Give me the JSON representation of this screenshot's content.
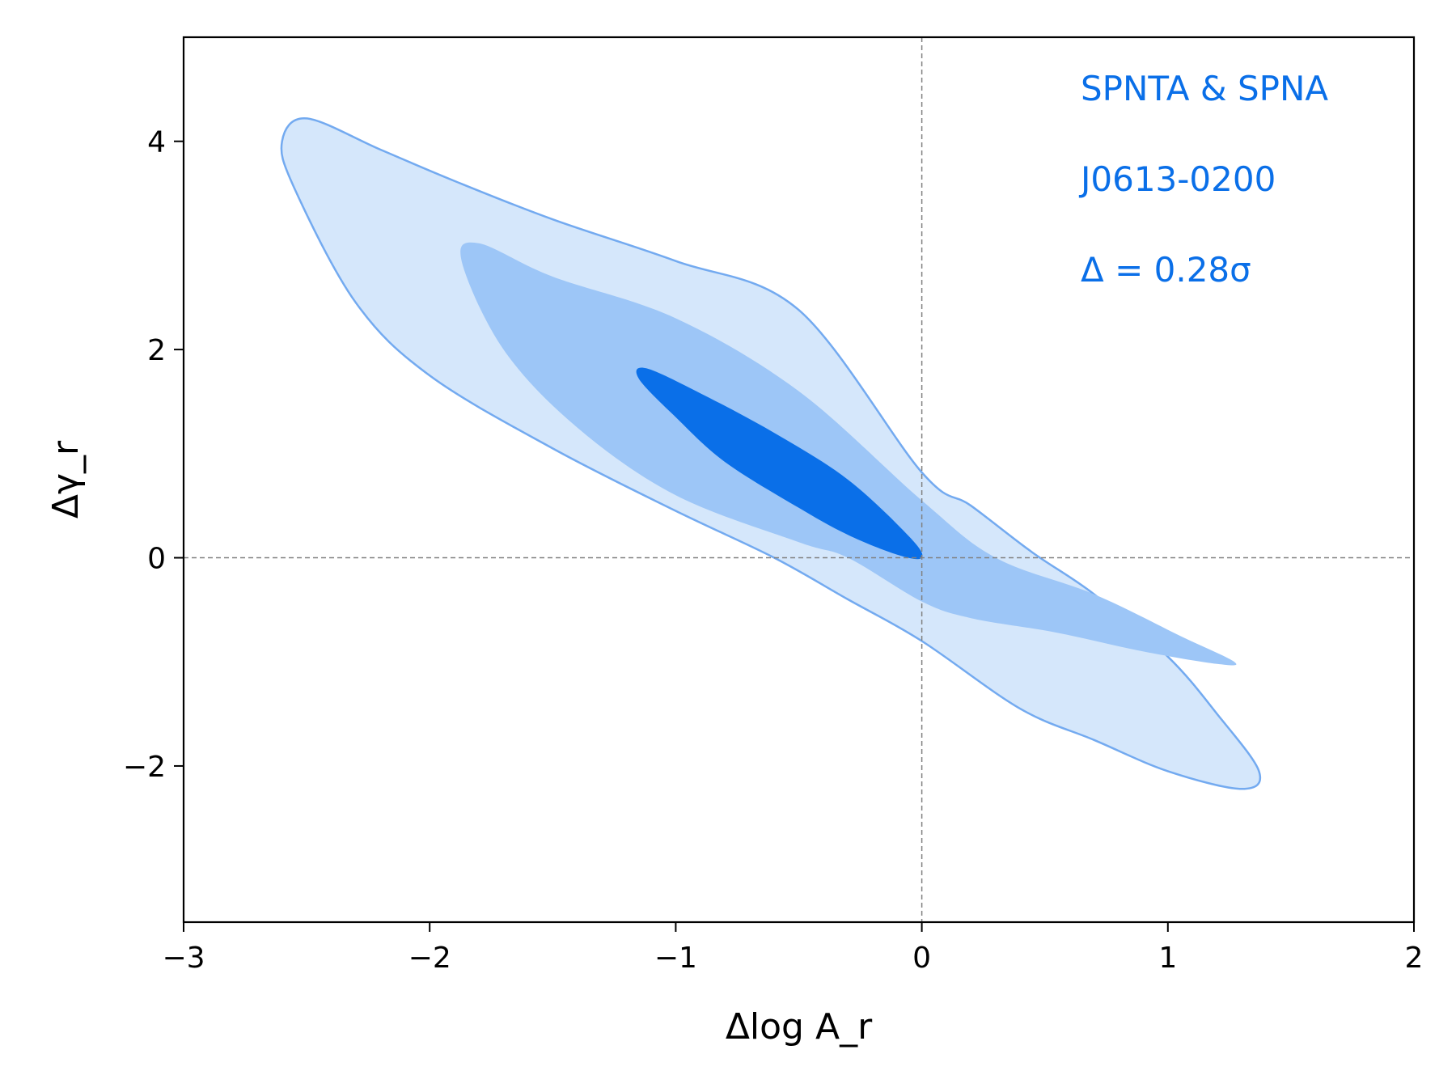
{
  "chart_data": {
    "type": "contour",
    "xlabel": "Δlog A_r",
    "ylabel": "Δγ_r",
    "xlim": [
      -3,
      2
    ],
    "ylim": [
      -3.5,
      5
    ],
    "xticks": [
      -3,
      -2,
      -1,
      0,
      1,
      2
    ],
    "yticks": [
      -2,
      0,
      2,
      4
    ],
    "xtick_labels": [
      "−3",
      "−2",
      "−1",
      "0",
      "1",
      "2"
    ],
    "ytick_labels": [
      "−2",
      "0",
      "2",
      "4"
    ],
    "reference_lines": {
      "x": 0,
      "y": 0,
      "style": "dashed",
      "color": "#808080"
    },
    "annotations": [
      "SPNTA & SPNA",
      "J0613-0200",
      "Δ = 0.28σ"
    ],
    "annotation_color": "#0a6fe8",
    "grid": false,
    "contours": [
      {
        "level": "outer",
        "fill": "#d5e7fb",
        "stroke": "#73aaf0",
        "points": [
          [
            -2.5,
            4.22
          ],
          [
            -2.2,
            3.92
          ],
          [
            -1.9,
            3.62
          ],
          [
            -1.5,
            3.25
          ],
          [
            -1.0,
            2.85
          ],
          [
            -0.5,
            2.38
          ],
          [
            0.0,
            0.82
          ],
          [
            0.2,
            0.5
          ],
          [
            0.45,
            0.05
          ],
          [
            0.7,
            -0.35
          ],
          [
            1.0,
            -0.95
          ],
          [
            1.2,
            -1.5
          ],
          [
            1.37,
            -2.05
          ],
          [
            1.3,
            -2.22
          ],
          [
            1.0,
            -2.05
          ],
          [
            0.7,
            -1.75
          ],
          [
            0.4,
            -1.45
          ],
          [
            0.0,
            -0.8
          ],
          [
            -0.3,
            -0.4
          ],
          [
            -0.6,
            0.0
          ],
          [
            -1.0,
            0.45
          ],
          [
            -1.5,
            1.05
          ],
          [
            -2.0,
            1.75
          ],
          [
            -2.3,
            2.45
          ],
          [
            -2.55,
            3.55
          ],
          [
            -2.6,
            4.0
          ]
        ]
      },
      {
        "level": "middle",
        "fill": "#9dc6f7",
        "points": [
          [
            -1.8,
            3.02
          ],
          [
            -1.5,
            2.7
          ],
          [
            -1.0,
            2.3
          ],
          [
            -0.5,
            1.6
          ],
          [
            0.0,
            0.55
          ],
          [
            0.3,
            0.0
          ],
          [
            0.7,
            -0.35
          ],
          [
            1.05,
            -0.75
          ],
          [
            1.27,
            -1.0
          ],
          [
            1.2,
            -1.02
          ],
          [
            0.9,
            -0.9
          ],
          [
            0.55,
            -0.72
          ],
          [
            0.2,
            -0.58
          ],
          [
            0.0,
            -0.42
          ],
          [
            -0.3,
            0.0
          ],
          [
            -0.5,
            0.15
          ],
          [
            -1.0,
            0.6
          ],
          [
            -1.4,
            1.25
          ],
          [
            -1.7,
            2.0
          ],
          [
            -1.87,
            2.85
          ]
        ]
      },
      {
        "level": "inner",
        "fill": "#0a6fe8",
        "points": [
          [
            -1.12,
            1.82
          ],
          [
            -0.9,
            1.58
          ],
          [
            -0.6,
            1.2
          ],
          [
            -0.3,
            0.75
          ],
          [
            -0.05,
            0.2
          ],
          [
            0.0,
            0.0
          ],
          [
            -0.1,
            0.03
          ],
          [
            -0.3,
            0.22
          ],
          [
            -0.5,
            0.48
          ],
          [
            -0.8,
            0.92
          ],
          [
            -1.0,
            1.35
          ],
          [
            -1.15,
            1.72
          ]
        ]
      }
    ]
  }
}
